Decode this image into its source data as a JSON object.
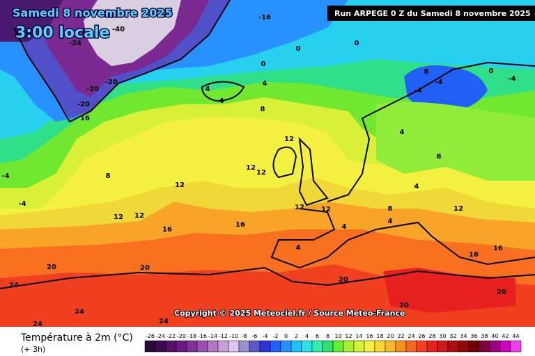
{
  "header": {
    "date": "Samedi 8 novembre 2025",
    "time": "3:00 locale",
    "run": "Run ARPEGE 0 Z du Samedi 8 novembre 2025"
  },
  "copyright": "Copyright © 2025 Meteociel.fr / Source Meteo-France",
  "contour_labels": [
    0,
    0,
    0,
    4,
    4,
    4,
    8,
    16,
    -20,
    -20,
    -20,
    -24,
    -40,
    8,
    12,
    12,
    12,
    16,
    16,
    12,
    12,
    12,
    12,
    12,
    4,
    4,
    20,
    4,
    4,
    8,
    4,
    -4,
    8,
    -4,
    0,
    -4,
    12,
    16,
    16,
    20,
    20,
    24,
    24,
    24,
    24,
    20,
    20,
    -4,
    -4,
    -16,
    8
  ],
  "legend": {
    "title": "Température à 2m (°C)",
    "subtitle": "(+ 3h)",
    "ticks": [
      -26,
      -24,
      -22,
      -20,
      -18,
      -16,
      -14,
      -12,
      -10,
      -8,
      -6,
      -4,
      -2,
      0,
      2,
      4,
      6,
      8,
      10,
      12,
      14,
      16,
      18,
      20,
      22,
      24,
      26,
      28,
      30,
      32,
      34,
      36,
      38,
      40,
      42,
      44
    ],
    "colors": [
      "#2a0838",
      "#3e0c50",
      "#54106a",
      "#6a1a82",
      "#82309a",
      "#9a50b0",
      "#b078c4",
      "#c8a0d8",
      "#dcc8ec",
      "#9890d0",
      "#5858c8",
      "#3030d8",
      "#2060f8",
      "#2890ff",
      "#20c0ff",
      "#30e0e8",
      "#30f0b0",
      "#30e070",
      "#60f030",
      "#a8f030",
      "#d8f038",
      "#f4f040",
      "#f8d830",
      "#f8b828",
      "#f89020",
      "#f86820",
      "#f84020",
      "#e82020",
      "#d01818",
      "#b01010",
      "#900808",
      "#700000",
      "#800040",
      "#a00080",
      "#d000c0",
      "#f040f0"
    ]
  }
}
